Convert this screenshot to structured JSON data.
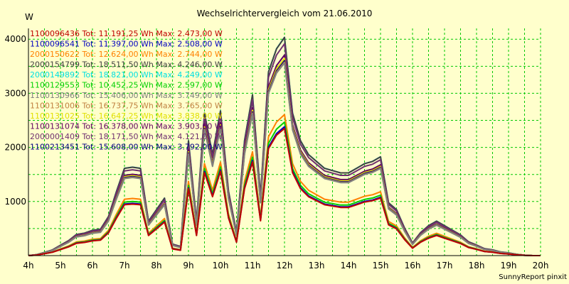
{
  "chart_data": {
    "type": "line",
    "title": "Wechselrichtervergleich vom 21.06.2010",
    "ylabel": "W",
    "xlabel": "",
    "ylim": [
      0,
      4200
    ],
    "y_ticks": [
      1000,
      2000,
      3000,
      4000
    ],
    "x_range": [
      4,
      20
    ],
    "x_ticks": [
      "4h",
      "5h",
      "6h",
      "7h",
      "8h",
      "9h",
      "10h",
      "11h",
      "12h",
      "13h",
      "14h",
      "15h",
      "16h",
      "17h",
      "18h",
      "19h",
      "20h"
    ],
    "grid": true,
    "legend_position": "top-left",
    "footer": "SunnyReport pinxit",
    "x": [
      4.0,
      4.25,
      4.5,
      4.75,
      5.0,
      5.25,
      5.5,
      5.75,
      6.0,
      6.25,
      6.5,
      6.75,
      7.0,
      7.25,
      7.5,
      7.75,
      8.0,
      8.25,
      8.5,
      8.75,
      9.0,
      9.25,
      9.5,
      9.75,
      10.0,
      10.25,
      10.5,
      10.75,
      11.0,
      11.25,
      11.5,
      11.75,
      12.0,
      12.25,
      12.5,
      12.75,
      13.0,
      13.25,
      13.5,
      13.75,
      14.0,
      14.25,
      14.5,
      14.75,
      15.0,
      15.25,
      15.5,
      15.75,
      16.0,
      16.25,
      16.5,
      16.75,
      17.0,
      17.25,
      17.5,
      17.75,
      18.0,
      18.25,
      18.5,
      18.75,
      19.0,
      19.25,
      19.5,
      19.75,
      20.0
    ],
    "base_profile": [
      0.0,
      0.004,
      0.014,
      0.025,
      0.045,
      0.065,
      0.092,
      0.098,
      0.11,
      0.115,
      0.17,
      0.28,
      0.38,
      0.385,
      0.38,
      0.15,
      0.2,
      0.25,
      0.05,
      0.04,
      0.5,
      0.15,
      0.62,
      0.44,
      0.63,
      0.28,
      0.1,
      0.5,
      0.7,
      0.26,
      0.8,
      0.9,
      0.95,
      0.62,
      0.5,
      0.44,
      0.41,
      0.38,
      0.37,
      0.36,
      0.36,
      0.38,
      0.4,
      0.41,
      0.43,
      0.23,
      0.2,
      0.12,
      0.055,
      0.1,
      0.13,
      0.15,
      0.13,
      0.11,
      0.09,
      0.06,
      0.046,
      0.03,
      0.025,
      0.016,
      0.012,
      0.006,
      0.002,
      0.0,
      0.0
    ],
    "series": [
      {
        "id": "1100096436",
        "label": "1100096436 Tot: 11.191,25 Wh Max: 2.473,00 W",
        "color": "#c00000",
        "total_wh": 11191.25,
        "max_w": 2473.0
      },
      {
        "id": "1100096541",
        "label": "1100096541 Tot: 11.397,00 Wh Max: 2.508,00 W",
        "color": "#0000c0",
        "total_wh": 11397.0,
        "max_w": 2508.0
      },
      {
        "id": "2000150622",
        "label": "2000150622 Tot: 12.624,00 Wh Max: 2.744,00 W",
        "color": "#ff8000",
        "total_wh": 12624.0,
        "max_w": 2744.0
      },
      {
        "id": "2000154799",
        "label": "2000154799 Tot: 18.511,50 Wh Max: 4.246,00 W",
        "color": "#404040",
        "total_wh": 18511.5,
        "max_w": 4246.0
      },
      {
        "id": "2000149892",
        "label": "2000149892 Tot: 18.821,00 Wh Max: 4.249,00 W",
        "color": "#00e0e0",
        "total_wh": 18821.0,
        "max_w": 4249.0
      },
      {
        "id": "1100129553",
        "label": "1100129553 Tot: 10.452,25 Wh Max: 2.597,00 W",
        "color": "#00d000",
        "total_wh": 10452.25,
        "max_w": 2597.0
      },
      {
        "id": "1100130966",
        "label": "1100130966 Tot: 15.406,00 Wh Max: 3.749,00 W",
        "color": "#808080",
        "total_wh": 15406.0,
        "max_w": 3749.0
      },
      {
        "id": "1100131006",
        "label": "1100131006 Tot: 16.737,75 Wh Max: 3.765,00 W",
        "color": "#c08040",
        "total_wh": 16737.75,
        "max_w": 3765.0
      },
      {
        "id": "1100131025",
        "label": "1100131025 Tot: 16.647,25 Wh Max: 3.838,00 W",
        "color": "#e0e000",
        "total_wh": 16647.25,
        "max_w": 3838.0
      },
      {
        "id": "1100131074",
        "label": "1100131074 Tot: 16.378,00 Wh Max: 3.903,00 W",
        "color": "#600060",
        "total_wh": 16378.0,
        "max_w": 3903.0
      },
      {
        "id": "2000001409",
        "label": "2000001409 Tot: 18.171,50 Wh Max: 4.121,00 W",
        "color": "#703070",
        "total_wh": 18171.5,
        "max_w": 4121.0
      },
      {
        "id": "1100213451",
        "label": "1100213451 Tot: 15.608,00 Wh Max: 3.792,00 W",
        "color": "#000080",
        "total_wh": 15608.0,
        "max_w": 3792.0
      }
    ]
  },
  "colors": {
    "background": "#ffffcc",
    "grid": "#00c800",
    "axis": "#000000"
  }
}
